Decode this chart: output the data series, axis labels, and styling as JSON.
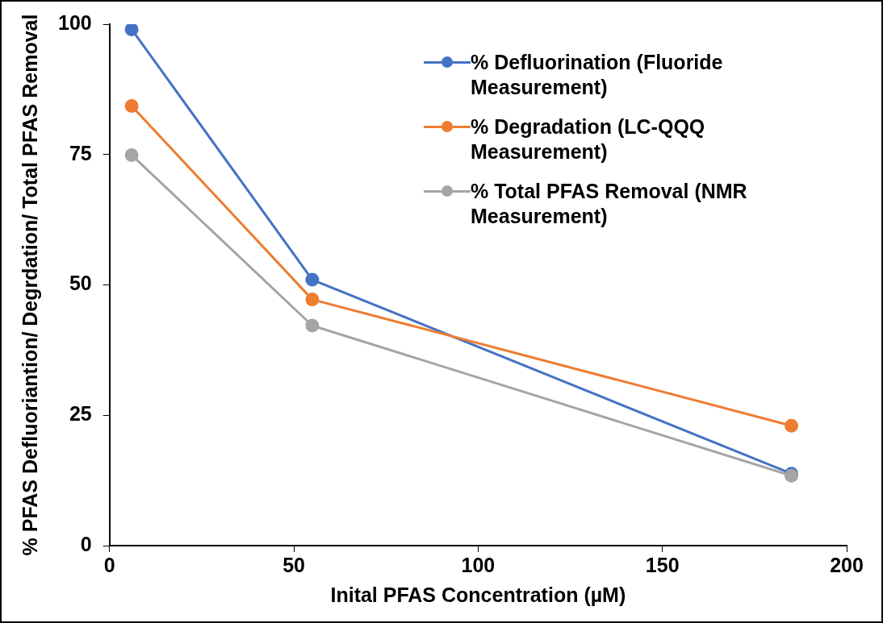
{
  "chart_data": {
    "type": "line",
    "xlabel": "Inital PFAS Concentration (µM)",
    "ylabel": "% PFAS Defluoriantion/ Degrdation/ Total PFAS Removal",
    "x": [
      6,
      55,
      185
    ],
    "series": [
      {
        "name": "% Defluorination (Fluoride Measurement)",
        "color": "#4472c4",
        "values": [
          99,
          51,
          13.8
        ]
      },
      {
        "name": "% Degradation (LC-QQQ Measurement)",
        "color": "#ed7d31",
        "values": [
          84.3,
          47.2,
          23
        ]
      },
      {
        "name": "% Total PFAS Removal (NMR Measurement)",
        "color": "#a5a5a5",
        "values": [
          74.9,
          42.2,
          13.4
        ]
      }
    ],
    "xlim": [
      0,
      200
    ],
    "xticks": [
      0,
      50,
      100,
      150,
      200
    ],
    "ylim": [
      0,
      100
    ],
    "yticks": [
      0,
      25,
      50,
      75,
      100
    ],
    "grid": false,
    "legend": "top right",
    "marker": "circle",
    "line_style": "solid"
  }
}
